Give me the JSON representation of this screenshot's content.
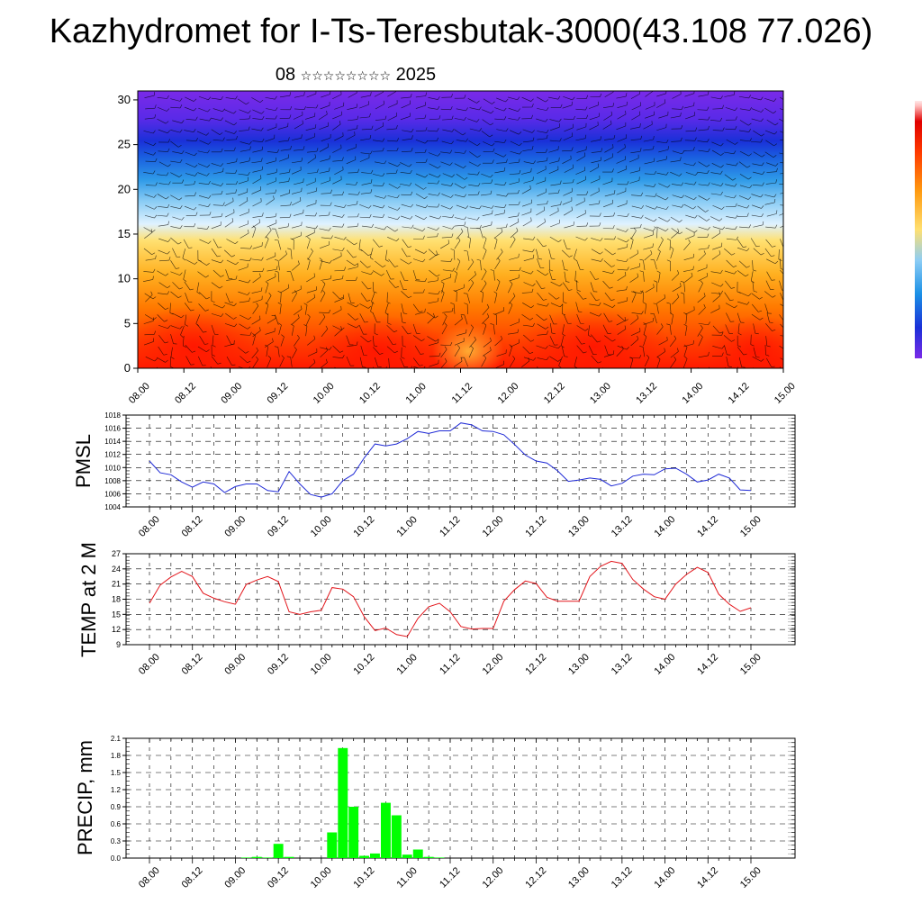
{
  "title": "Kazhydromet for I-Ts-Teresbutak-3000(43.108 77.026)",
  "subtitle": {
    "day": "08",
    "stars": "☆☆☆☆☆☆☆☆",
    "year": "2025"
  },
  "time_labels": [
    "08.00",
    "08.12",
    "09.00",
    "09.12",
    "10.00",
    "10.12",
    "11.00",
    "11.12",
    "12.00",
    "12.12",
    "13.00",
    "13.12",
    "14.00",
    "14.12",
    "15.00"
  ],
  "colors": {
    "pmsl_line": "#1f2ad6",
    "temp_line": "#e3161c",
    "precip_bar": "#00ff00"
  },
  "chart_data": [
    {
      "type": "heatmap",
      "name": "vertical cross-section",
      "ylim": [
        0,
        31
      ],
      "yticks": [
        0,
        5,
        10,
        15,
        20,
        25,
        30
      ],
      "description_colors": [
        "#ff1a00",
        "#ff7a00",
        "#ffd040",
        "#bfe8ff",
        "#1a90e6",
        "#1a40e0",
        "#6a2ae8"
      ]
    },
    {
      "type": "line",
      "ylabel": "PMSL",
      "ylim": [
        1004,
        1018
      ],
      "yticks": [
        1004,
        1006,
        1008,
        1010,
        1012,
        1014,
        1016,
        1018
      ],
      "x": [
        "08.00",
        "08.03",
        "08.06",
        "08.09",
        "08.12",
        "08.15",
        "08.18",
        "08.21",
        "09.00",
        "09.03",
        "09.06",
        "09.09",
        "09.12",
        "09.15",
        "09.18",
        "09.21",
        "10.00",
        "10.03",
        "10.06",
        "10.09",
        "10.12",
        "10.15",
        "10.18",
        "10.21",
        "11.00",
        "11.03",
        "11.06",
        "11.09",
        "11.12",
        "11.15",
        "11.18",
        "11.21",
        "12.00",
        "12.03",
        "12.06",
        "12.09",
        "12.12",
        "12.15",
        "12.18",
        "12.21",
        "13.00",
        "13.03",
        "13.06",
        "13.09",
        "13.12",
        "13.15",
        "13.18",
        "13.21",
        "14.00",
        "14.03",
        "14.06",
        "14.09",
        "14.12",
        "14.15",
        "14.18",
        "14.21",
        "15.00"
      ],
      "values": [
        1011.0,
        1009.2,
        1008.9,
        1007.8,
        1007.0,
        1007.8,
        1007.5,
        1006.2,
        1007.1,
        1007.5,
        1007.5,
        1006.5,
        1006.3,
        1009.4,
        1007.5,
        1005.9,
        1005.5,
        1006.0,
        1008.0,
        1009.0,
        1011.5,
        1013.6,
        1013.3,
        1013.6,
        1014.4,
        1015.5,
        1015.2,
        1015.6,
        1015.6,
        1016.8,
        1016.5,
        1015.6,
        1015.5,
        1015.0,
        1013.5,
        1011.9,
        1011.0,
        1010.7,
        1009.5,
        1007.9,
        1008.1,
        1008.4,
        1008.2,
        1007.2,
        1007.6,
        1008.7,
        1009.0,
        1008.9,
        1009.8,
        1009.9,
        1009.0,
        1007.8,
        1008.1,
        1009.0,
        1008.4,
        1006.6,
        1006.5
      ]
    },
    {
      "type": "line",
      "ylabel": "TEMP at 2 M",
      "ylim": [
        9,
        27
      ],
      "yticks": [
        9,
        12,
        15,
        18,
        21,
        24,
        27
      ],
      "x": [
        "08.00",
        "08.03",
        "08.06",
        "08.09",
        "08.12",
        "08.15",
        "08.18",
        "08.21",
        "09.00",
        "09.03",
        "09.06",
        "09.09",
        "09.12",
        "09.15",
        "09.18",
        "09.21",
        "10.00",
        "10.03",
        "10.06",
        "10.09",
        "10.12",
        "10.15",
        "10.18",
        "10.21",
        "11.00",
        "11.03",
        "11.06",
        "11.09",
        "11.12",
        "11.15",
        "11.18",
        "11.21",
        "12.00",
        "12.03",
        "12.06",
        "12.09",
        "12.12",
        "12.15",
        "12.18",
        "12.21",
        "13.00",
        "13.03",
        "13.06",
        "13.09",
        "13.12",
        "13.15",
        "13.18",
        "13.21",
        "14.00",
        "14.03",
        "14.06",
        "14.09",
        "14.12",
        "14.15",
        "14.18",
        "14.21",
        "15.00"
      ],
      "values": [
        17.2,
        20.8,
        22.4,
        23.5,
        22.5,
        19.2,
        18.2,
        17.5,
        17.0,
        20.9,
        21.8,
        22.5,
        21.5,
        15.5,
        15.0,
        15.5,
        15.8,
        20.3,
        20.0,
        18.5,
        14.5,
        11.8,
        12.3,
        11.0,
        10.6,
        14.2,
        16.5,
        17.2,
        15.5,
        12.6,
        12.1,
        12.2,
        12.2,
        17.6,
        19.9,
        21.6,
        21.1,
        18.4,
        17.6,
        17.6,
        17.6,
        22.5,
        24.5,
        25.5,
        25.1,
        21.9,
        20.0,
        18.5,
        18.0,
        21.0,
        22.9,
        24.3,
        23.3,
        19.0,
        17.0,
        15.6,
        16.3
      ]
    },
    {
      "type": "bar",
      "ylabel": "PRECIP, mm",
      "ylim": [
        0,
        2.1
      ],
      "yticks": [
        "0.0",
        "0.3",
        "0.6",
        "0.9",
        "1.2",
        "1.5",
        "1.8",
        "2.1"
      ],
      "x": [
        "08.00",
        "08.03",
        "08.06",
        "08.09",
        "08.12",
        "08.15",
        "08.18",
        "08.21",
        "09.00",
        "09.03",
        "09.06",
        "09.09",
        "09.12",
        "09.15",
        "09.18",
        "09.21",
        "10.00",
        "10.03",
        "10.06",
        "10.09",
        "10.12",
        "10.15",
        "10.18",
        "10.21",
        "11.00",
        "11.03",
        "11.06",
        "11.09",
        "11.12",
        "11.15",
        "11.18",
        "11.21",
        "12.00",
        "12.03",
        "12.06",
        "12.09",
        "12.12",
        "12.15",
        "12.18",
        "12.21",
        "13.00",
        "13.03",
        "13.06",
        "13.09",
        "13.12",
        "13.15",
        "13.18",
        "13.21",
        "14.00",
        "14.03",
        "14.06",
        "14.09",
        "14.12",
        "14.15",
        "14.18",
        "14.21",
        "15.00"
      ],
      "values": [
        0,
        0,
        0,
        0,
        0,
        0,
        0,
        0,
        0,
        0.01,
        0.02,
        0.01,
        0.25,
        0.02,
        0,
        0,
        0,
        0.45,
        1.93,
        0.9,
        0.04,
        0.08,
        0.97,
        0.75,
        0.06,
        0.15,
        0.02,
        0.01,
        0,
        0,
        0,
        0,
        0,
        0,
        0,
        0,
        0,
        0,
        0,
        0,
        0,
        0,
        0,
        0,
        0,
        0,
        0,
        0,
        0,
        0,
        0,
        0,
        0,
        0,
        0,
        0,
        0
      ]
    }
  ]
}
